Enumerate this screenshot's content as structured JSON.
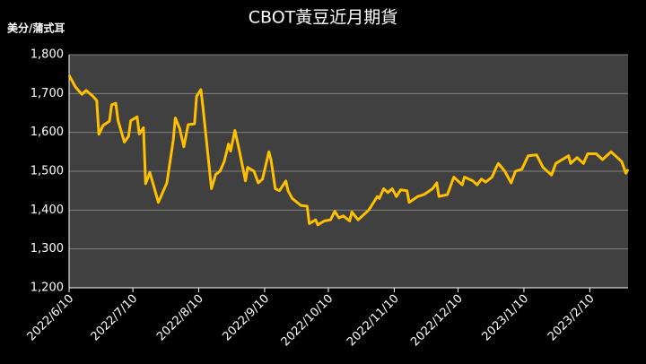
{
  "chart_data": {
    "type": "line",
    "title": "CBOT黃豆近月期貨",
    "y_label": "美分/蒲式耳",
    "color": "#ffc000",
    "grid": true,
    "x": [
      "2022/6/10",
      "2022/6/13",
      "2022/6/16",
      "2022/6/18",
      "2022/6/21",
      "2022/6/23",
      "2022/6/24",
      "2022/6/26",
      "2022/6/29",
      "2022/6/30",
      "2022/7/2",
      "2022/7/3",
      "2022/7/6",
      "2022/7/8",
      "2022/7/9",
      "2022/7/12",
      "2022/7/13",
      "2022/7/15",
      "2022/7/16",
      "2022/7/18",
      "2022/7/22",
      "2022/7/26",
      "2022/7/29",
      "2022/7/30",
      "2022/8/1",
      "2022/8/3",
      "2022/8/5",
      "2022/8/8",
      "2022/8/9",
      "2022/8/11",
      "2022/8/12",
      "2022/8/16",
      "2022/8/18",
      "2022/8/20",
      "2022/8/22",
      "2022/8/24",
      "2022/8/25",
      "2022/8/27",
      "2022/8/29",
      "2022/9/1",
      "2022/9/2",
      "2022/9/5",
      "2022/9/7",
      "2022/9/9",
      "2022/9/12",
      "2022/9/13",
      "2022/9/15",
      "2022/9/17",
      "2022/9/20",
      "2022/9/21",
      "2022/9/23",
      "2022/9/27",
      "2022/9/30",
      "2022/10/1",
      "2022/10/4",
      "2022/10/5",
      "2022/10/8",
      "2022/10/11",
      "2022/10/13",
      "2022/10/15",
      "2022/10/17",
      "2022/10/20",
      "2022/10/21",
      "2022/10/24",
      "2022/10/26",
      "2022/10/29",
      "2022/11/2",
      "2022/11/3",
      "2022/11/5",
      "2022/11/7",
      "2022/11/9",
      "2022/11/11",
      "2022/11/13",
      "2022/11/16",
      "2022/11/17",
      "2022/11/21",
      "2022/11/24",
      "2022/11/28",
      "2022/11/30",
      "2022/12/1",
      "2022/12/5",
      "2022/12/8",
      "2022/12/12",
      "2022/12/13",
      "2022/12/17",
      "2022/12/19",
      "2022/12/21",
      "2022/12/23",
      "2022/12/26",
      "2022/12/28",
      "2022/12/29",
      "2023/1/1",
      "2023/1/4",
      "2023/1/6",
      "2023/1/9",
      "2023/1/12",
      "2023/1/16",
      "2023/1/19",
      "2023/1/23",
      "2023/1/25",
      "2023/1/28",
      "2023/1/31",
      "2023/2/1",
      "2023/2/4",
      "2023/2/7",
      "2023/2/9",
      "2023/2/13",
      "2023/2/16",
      "2023/2/20",
      "2023/2/25",
      "2023/2/27",
      "2023/2/28"
    ],
    "values": [
      1747,
      1717,
      1698,
      1708,
      1694,
      1682,
      1595,
      1618,
      1629,
      1671,
      1675,
      1631,
      1575,
      1590,
      1630,
      1640,
      1596,
      1612,
      1468,
      1497,
      1420,
      1470,
      1580,
      1637,
      1610,
      1563,
      1620,
      1622,
      1693,
      1710,
      1665,
      1455,
      1492,
      1500,
      1525,
      1570,
      1552,
      1605,
      1556,
      1475,
      1510,
      1500,
      1470,
      1480,
      1550,
      1530,
      1455,
      1450,
      1475,
      1450,
      1430,
      1412,
      1410,
      1365,
      1375,
      1362,
      1372,
      1375,
      1397,
      1380,
      1385,
      1372,
      1395,
      1375,
      1385,
      1400,
      1435,
      1430,
      1455,
      1445,
      1455,
      1435,
      1452,
      1450,
      1420,
      1435,
      1440,
      1455,
      1470,
      1435,
      1440,
      1485,
      1465,
      1485,
      1475,
      1465,
      1480,
      1472,
      1485,
      1510,
      1520,
      1500,
      1470,
      1500,
      1505,
      1540,
      1542,
      1510,
      1490,
      1520,
      1530,
      1540,
      1520,
      1535,
      1520,
      1545,
      1545,
      1530,
      1550,
      1525,
      1495,
      1505
    ],
    "xlim": [
      "2022/6/10",
      "2023/2/28"
    ],
    "xticks": [
      "2022/6/10",
      "2022/7/10",
      "2022/8/10",
      "2022/9/10",
      "2022/10/10",
      "2022/11/10",
      "2022/12/10",
      "2023/1/10",
      "2023/2/10"
    ],
    "ylim": [
      1200,
      1800
    ],
    "yticks": [
      {
        "value": 1200,
        "label": "1,200"
      },
      {
        "value": 1300,
        "label": "1,300"
      },
      {
        "value": 1400,
        "label": "1,400"
      },
      {
        "value": 1500,
        "label": "1,500"
      },
      {
        "value": 1600,
        "label": "1,600"
      },
      {
        "value": 1700,
        "label": "1,700"
      },
      {
        "value": 1800,
        "label": "1,800"
      }
    ]
  }
}
